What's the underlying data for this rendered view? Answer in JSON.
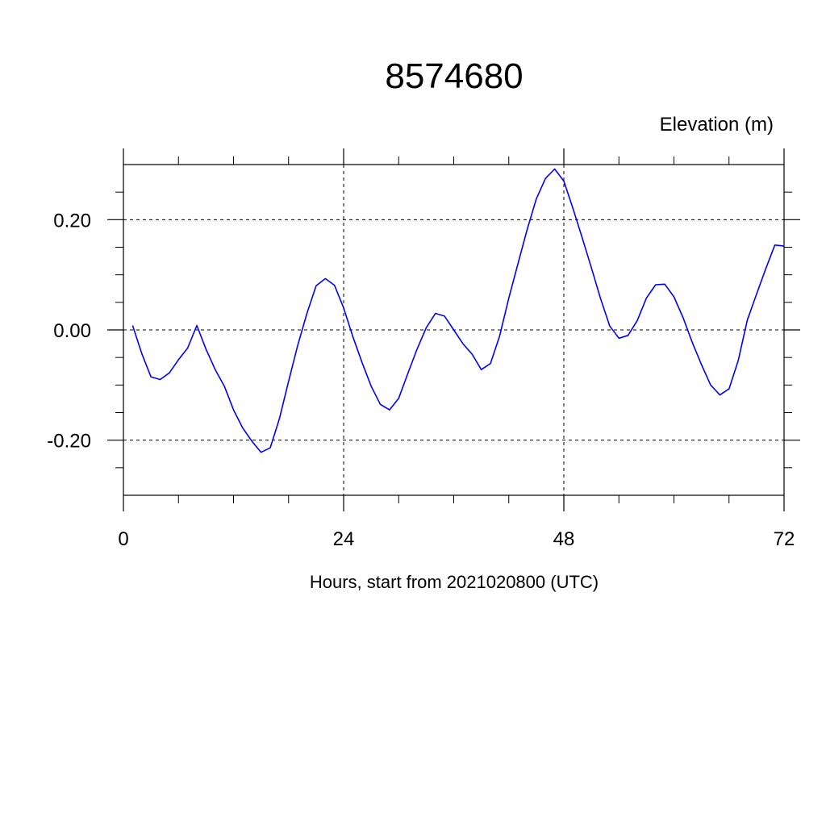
{
  "chart_data": {
    "type": "line",
    "title": "8574680",
    "ylabel": "Elevation (m)",
    "xlabel": "Hours, start from 2021020800 (UTC)",
    "xlim": [
      0,
      72
    ],
    "ylim": [
      -0.3,
      0.3
    ],
    "x_ticks": [
      0,
      24,
      48,
      72
    ],
    "x_tick_labels": [
      "0",
      "24",
      "48",
      "72"
    ],
    "y_ticks": [
      -0.2,
      0.0,
      0.2
    ],
    "y_tick_labels": [
      "-0.20",
      "0.00",
      "0.20"
    ],
    "grid": true,
    "series": [
      {
        "color": "#0000ff",
        "x": [
          1,
          2,
          3,
          4,
          5,
          6,
          7,
          8,
          9,
          10,
          11,
          12,
          13,
          14,
          15,
          16,
          17,
          18,
          19,
          20,
          21,
          22,
          23,
          24,
          25,
          26,
          27,
          28,
          29,
          30,
          31,
          32,
          33,
          34,
          35,
          36,
          37,
          38,
          39,
          40,
          41,
          42,
          43,
          44,
          45,
          46,
          47,
          48,
          49,
          50,
          51,
          52,
          53,
          54,
          55,
          56,
          57,
          58,
          59,
          60,
          61,
          62,
          63,
          64,
          65,
          66,
          67,
          68,
          69,
          70,
          71,
          72
        ],
        "y": [
          0.008,
          -0.043,
          -0.085,
          -0.09,
          -0.078,
          -0.054,
          -0.033,
          0.008,
          -0.035,
          -0.072,
          -0.102,
          -0.145,
          -0.178,
          -0.202,
          -0.222,
          -0.214,
          -0.161,
          -0.093,
          -0.028,
          0.03,
          0.08,
          0.093,
          0.081,
          0.04,
          -0.012,
          -0.059,
          -0.102,
          -0.135,
          -0.145,
          -0.124,
          -0.079,
          -0.035,
          0.004,
          0.03,
          0.025,
          0.0,
          -0.025,
          -0.044,
          -0.072,
          -0.061,
          -0.011,
          0.058,
          0.12,
          0.182,
          0.238,
          0.275,
          0.292,
          0.27,
          0.22,
          0.167,
          0.113,
          0.057,
          0.007,
          -0.015,
          -0.01,
          0.017,
          0.058,
          0.082,
          0.083,
          0.06,
          0.022,
          -0.023,
          -0.063,
          -0.1,
          -0.118,
          -0.107,
          -0.056,
          0.018,
          0.065,
          0.111,
          0.154,
          0.152
        ]
      }
    ]
  }
}
